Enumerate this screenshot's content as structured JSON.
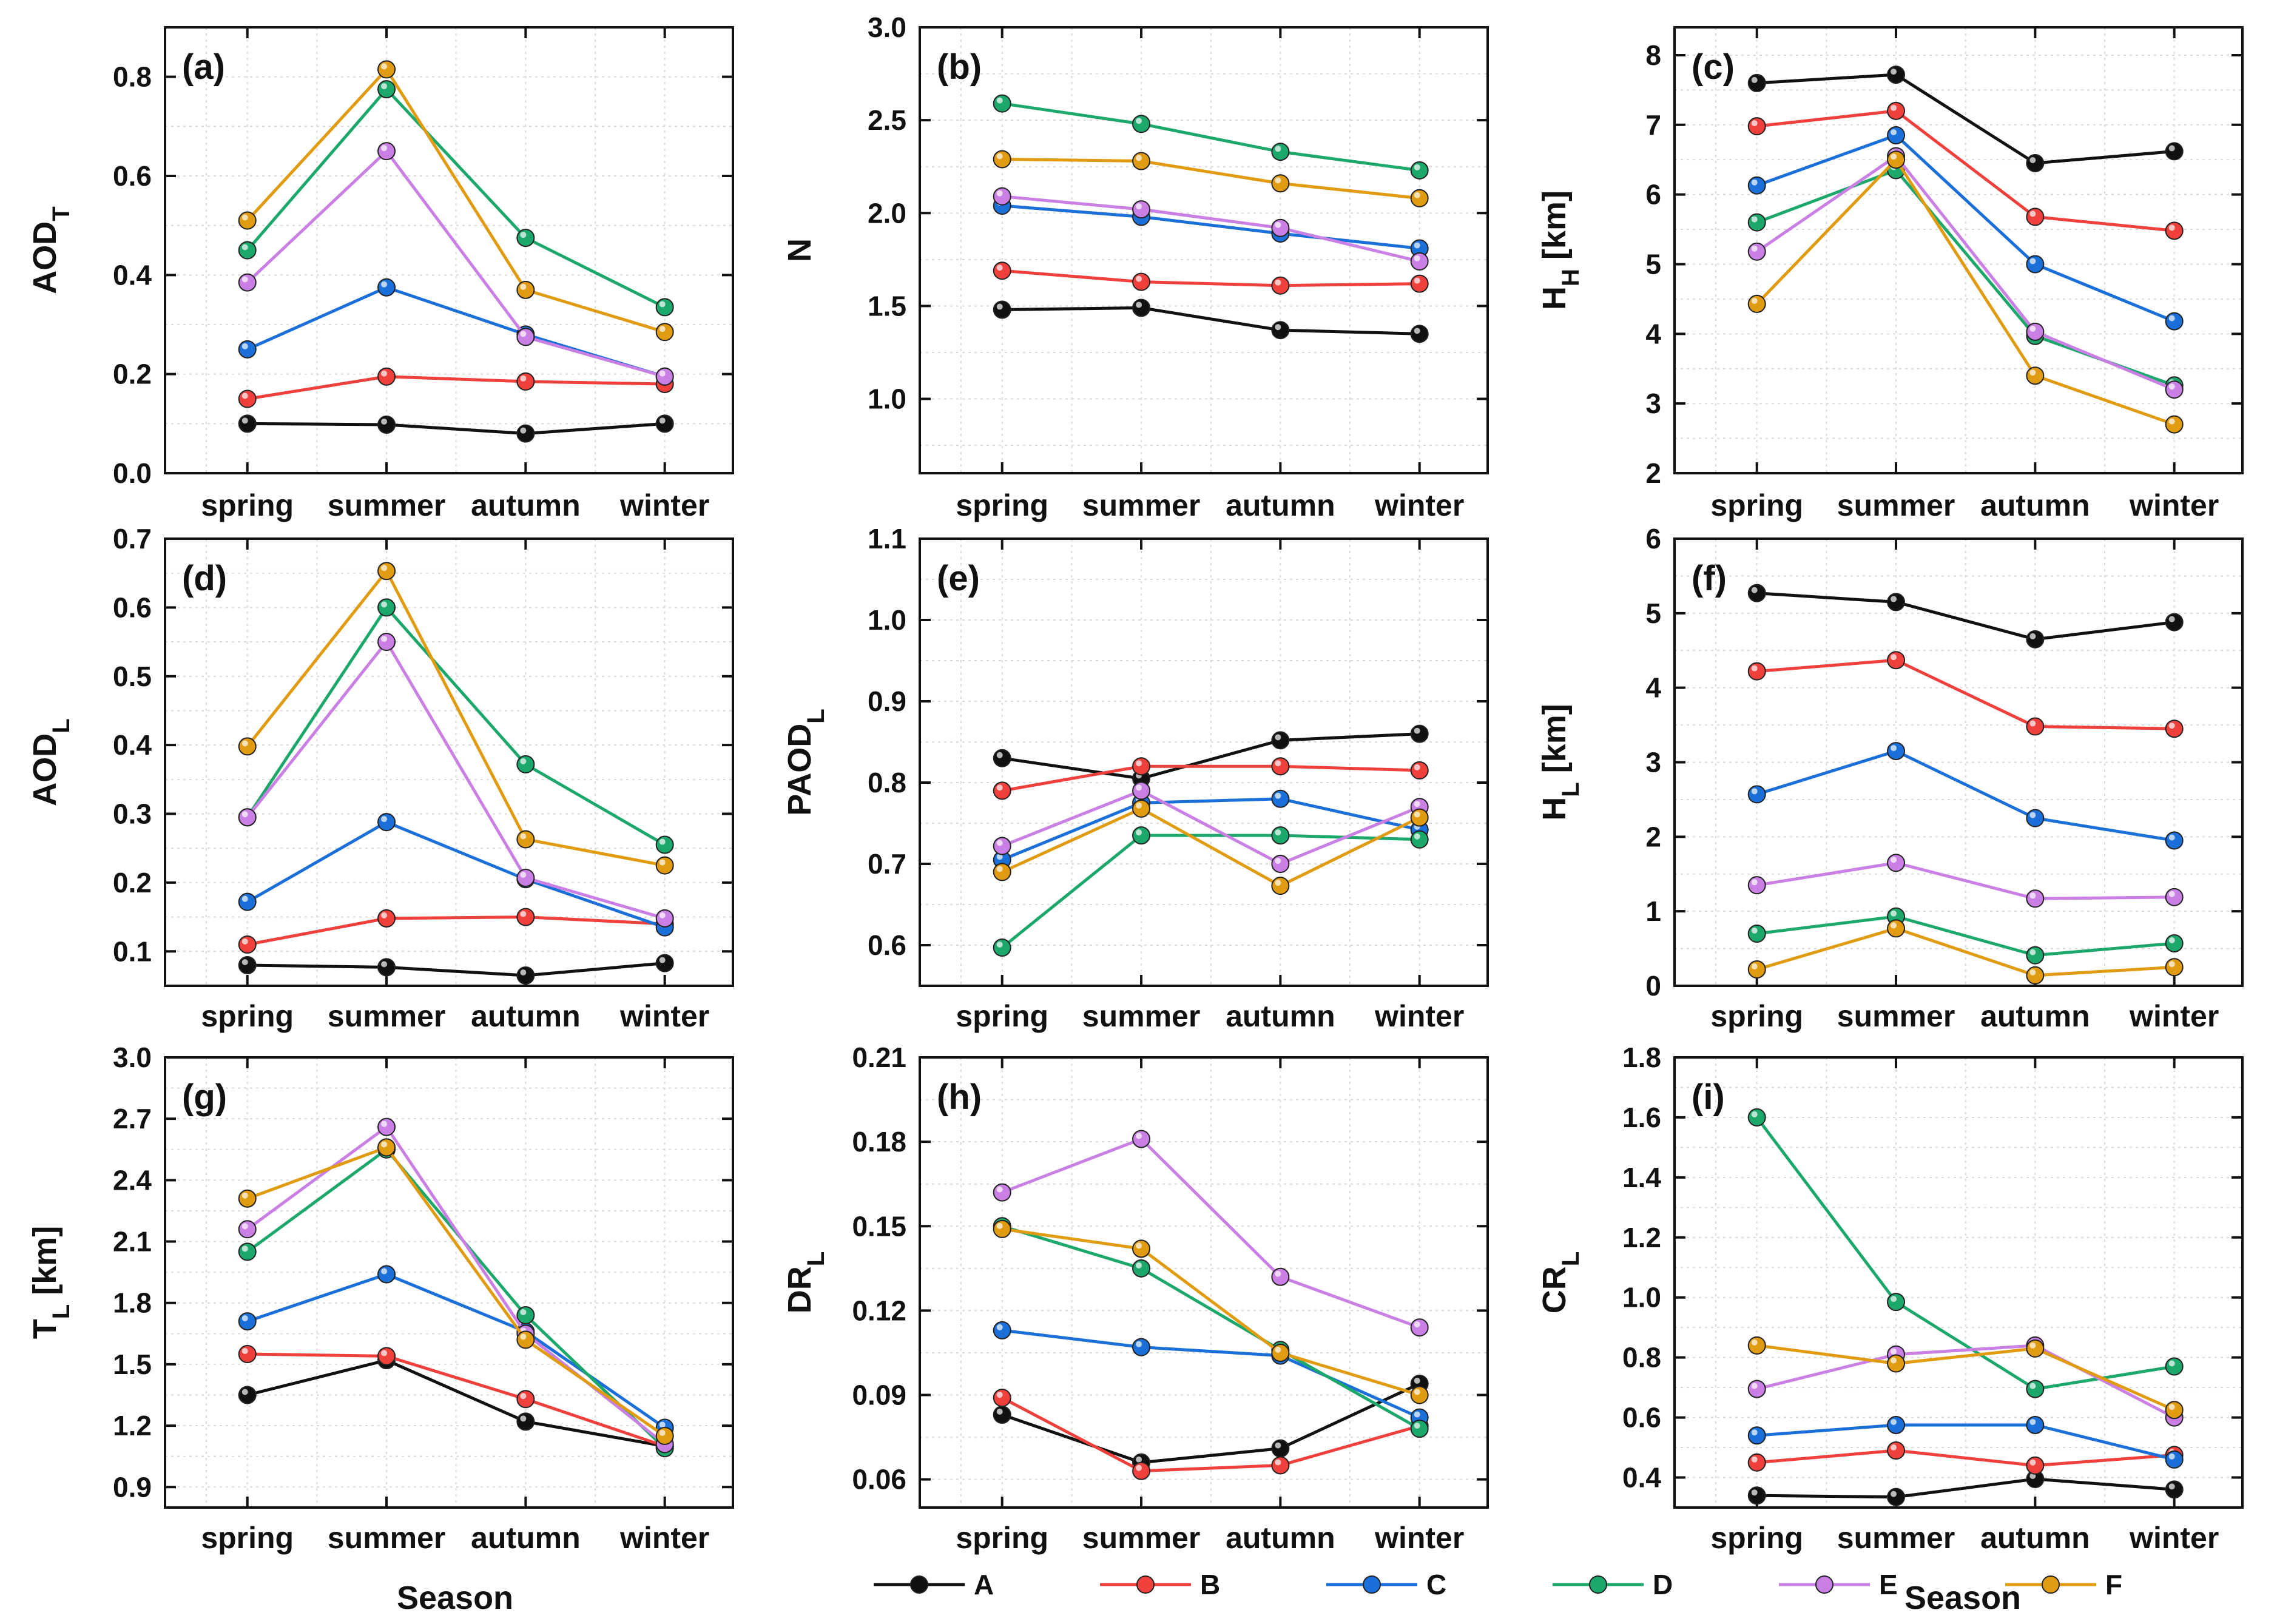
{
  "series_names": [
    "A",
    "B",
    "C",
    "D",
    "E",
    "F"
  ],
  "colors": {
    "A": "#111111",
    "B": "#f0403c",
    "C": "#1a6fd8",
    "D": "#1ba86a",
    "E": "#c97fe3",
    "F": "#e09b10"
  },
  "categories": [
    "spring",
    "summer",
    "autumn",
    "winter"
  ],
  "x_title": "Season",
  "chart_data": [
    {
      "type": "line",
      "tag": "(a)",
      "ylabel": "AOD",
      "ylabel_sub": "T",
      "ylim": [
        0.0,
        0.9
      ],
      "yticks": [
        "0.0",
        "0.2",
        "0.4",
        "0.6",
        "0.8"
      ],
      "series": [
        {
          "name": "A",
          "values": [
            0.1,
            0.098,
            0.08,
            0.1
          ]
        },
        {
          "name": "B",
          "values": [
            0.15,
            0.195,
            0.185,
            0.18
          ]
        },
        {
          "name": "C",
          "values": [
            0.25,
            0.375,
            0.28,
            0.195
          ]
        },
        {
          "name": "D",
          "values": [
            0.45,
            0.775,
            0.475,
            0.335
          ]
        },
        {
          "name": "E",
          "values": [
            0.385,
            0.65,
            0.275,
            0.195
          ]
        },
        {
          "name": "F",
          "values": [
            0.51,
            0.815,
            0.37,
            0.285
          ]
        }
      ]
    },
    {
      "type": "line",
      "tag": "(b)",
      "ylabel": "N",
      "ylabel_sub": "",
      "ylim": [
        0.6,
        3.0
      ],
      "yticks": [
        "1.0",
        "1.5",
        "2.0",
        "2.5",
        "3.0"
      ],
      "series": [
        {
          "name": "A",
          "values": [
            1.48,
            1.49,
            1.37,
            1.35
          ]
        },
        {
          "name": "B",
          "values": [
            1.69,
            1.63,
            1.61,
            1.62
          ]
        },
        {
          "name": "C",
          "values": [
            2.04,
            1.98,
            1.89,
            1.81
          ]
        },
        {
          "name": "D",
          "values": [
            2.59,
            2.48,
            2.33,
            2.23
          ]
        },
        {
          "name": "E",
          "values": [
            2.09,
            2.02,
            1.92,
            1.74
          ]
        },
        {
          "name": "F",
          "values": [
            2.29,
            2.28,
            2.16,
            2.08
          ]
        }
      ]
    },
    {
      "type": "line",
      "tag": "(c)",
      "ylabel": "H",
      "ylabel_sub": "H",
      "ylabel_suffix": " [km]",
      "ylim": [
        2,
        8.4
      ],
      "yticks": [
        "2",
        "3",
        "4",
        "5",
        "6",
        "7",
        "8"
      ],
      "series": [
        {
          "name": "A",
          "values": [
            7.6,
            7.72,
            6.45,
            6.62
          ]
        },
        {
          "name": "B",
          "values": [
            6.98,
            7.2,
            5.68,
            5.48
          ]
        },
        {
          "name": "C",
          "values": [
            6.13,
            6.85,
            5.0,
            4.18
          ]
        },
        {
          "name": "D",
          "values": [
            5.6,
            6.35,
            3.97,
            3.26
          ]
        },
        {
          "name": "E",
          "values": [
            5.18,
            6.55,
            4.03,
            3.2
          ]
        },
        {
          "name": "F",
          "values": [
            4.43,
            6.5,
            3.4,
            2.7
          ]
        }
      ]
    },
    {
      "type": "line",
      "tag": "(d)",
      "ylabel": "AOD",
      "ylabel_sub": "L",
      "ylim": [
        0.05,
        0.7
      ],
      "yticks": [
        "0.1",
        "0.2",
        "0.3",
        "0.4",
        "0.5",
        "0.6",
        "0.7"
      ],
      "series": [
        {
          "name": "A",
          "values": [
            0.08,
            0.077,
            0.065,
            0.083
          ]
        },
        {
          "name": "B",
          "values": [
            0.11,
            0.148,
            0.15,
            0.14
          ]
        },
        {
          "name": "C",
          "values": [
            0.172,
            0.288,
            0.205,
            0.135
          ]
        },
        {
          "name": "D",
          "values": [
            0.295,
            0.6,
            0.372,
            0.255
          ]
        },
        {
          "name": "E",
          "values": [
            0.295,
            0.55,
            0.207,
            0.148
          ]
        },
        {
          "name": "F",
          "values": [
            0.398,
            0.653,
            0.263,
            0.225
          ]
        }
      ]
    },
    {
      "type": "line",
      "tag": "(e)",
      "ylabel": "PAOD",
      "ylabel_sub": "L",
      "ylim": [
        0.55,
        1.1
      ],
      "yticks": [
        "0.6",
        "0.7",
        "0.8",
        "0.9",
        "1.0",
        "1.1"
      ],
      "series": [
        {
          "name": "A",
          "values": [
            0.83,
            0.805,
            0.852,
            0.86
          ]
        },
        {
          "name": "B",
          "values": [
            0.79,
            0.82,
            0.82,
            0.815
          ]
        },
        {
          "name": "C",
          "values": [
            0.705,
            0.775,
            0.78,
            0.742
          ]
        },
        {
          "name": "D",
          "values": [
            0.597,
            0.735,
            0.735,
            0.73
          ]
        },
        {
          "name": "E",
          "values": [
            0.722,
            0.79,
            0.7,
            0.77
          ]
        },
        {
          "name": "F",
          "values": [
            0.69,
            0.768,
            0.673,
            0.757
          ]
        }
      ]
    },
    {
      "type": "line",
      "tag": "(f)",
      "ylabel": "H",
      "ylabel_sub": "L",
      "ylabel_suffix": " [km]",
      "ylim": [
        0,
        6
      ],
      "yticks": [
        "0",
        "1",
        "2",
        "3",
        "4",
        "5",
        "6"
      ],
      "series": [
        {
          "name": "A",
          "values": [
            5.27,
            5.15,
            4.65,
            4.88
          ]
        },
        {
          "name": "B",
          "values": [
            4.22,
            4.37,
            3.48,
            3.45
          ]
        },
        {
          "name": "C",
          "values": [
            2.57,
            3.15,
            2.25,
            1.95
          ]
        },
        {
          "name": "D",
          "values": [
            0.7,
            0.93,
            0.41,
            0.57
          ]
        },
        {
          "name": "E",
          "values": [
            1.35,
            1.65,
            1.17,
            1.19
          ]
        },
        {
          "name": "F",
          "values": [
            0.22,
            0.77,
            0.14,
            0.25
          ]
        }
      ]
    },
    {
      "type": "line",
      "tag": "(g)",
      "ylabel": "T",
      "ylabel_sub": "L",
      "ylabel_suffix": " [km]",
      "ylim": [
        0.8,
        3.0
      ],
      "yticks": [
        "0.9",
        "1.2",
        "1.5",
        "1.8",
        "2.1",
        "2.4",
        "2.7",
        "3.0"
      ],
      "series": [
        {
          "name": "A",
          "values": [
            1.35,
            1.52,
            1.22,
            1.1
          ]
        },
        {
          "name": "B",
          "values": [
            1.55,
            1.54,
            1.33,
            1.1
          ]
        },
        {
          "name": "C",
          "values": [
            1.71,
            1.94,
            1.66,
            1.19
          ]
        },
        {
          "name": "D",
          "values": [
            2.05,
            2.55,
            1.74,
            1.09
          ]
        },
        {
          "name": "E",
          "values": [
            2.16,
            2.66,
            1.65,
            1.11
          ]
        },
        {
          "name": "F",
          "values": [
            2.31,
            2.56,
            1.62,
            1.15
          ]
        }
      ]
    },
    {
      "type": "line",
      "tag": "(h)",
      "ylabel": "DR",
      "ylabel_sub": "L",
      "ylim": [
        0.05,
        0.21
      ],
      "yticks": [
        "0.06",
        "0.09",
        "0.12",
        "0.15",
        "0.18",
        "0.21"
      ],
      "series": [
        {
          "name": "A",
          "values": [
            0.083,
            0.066,
            0.071,
            0.094
          ]
        },
        {
          "name": "B",
          "values": [
            0.089,
            0.063,
            0.065,
            0.079
          ]
        },
        {
          "name": "C",
          "values": [
            0.113,
            0.107,
            0.104,
            0.082
          ]
        },
        {
          "name": "D",
          "values": [
            0.15,
            0.135,
            0.106,
            0.078
          ]
        },
        {
          "name": "E",
          "values": [
            0.162,
            0.181,
            0.132,
            0.114
          ]
        },
        {
          "name": "F",
          "values": [
            0.149,
            0.142,
            0.105,
            0.09
          ]
        }
      ]
    },
    {
      "type": "line",
      "tag": "(i)",
      "ylabel": "CR",
      "ylabel_sub": "L",
      "ylim": [
        0.3,
        1.8
      ],
      "yticks": [
        "0.4",
        "0.6",
        "0.8",
        "1.0",
        "1.2",
        "1.4",
        "1.6",
        "1.8"
      ],
      "series": [
        {
          "name": "A",
          "values": [
            0.34,
            0.335,
            0.395,
            0.36
          ]
        },
        {
          "name": "B",
          "values": [
            0.45,
            0.49,
            0.44,
            0.475
          ]
        },
        {
          "name": "C",
          "values": [
            0.54,
            0.575,
            0.575,
            0.46
          ]
        },
        {
          "name": "D",
          "values": [
            1.6,
            0.985,
            0.695,
            0.77
          ]
        },
        {
          "name": "E",
          "values": [
            0.695,
            0.81,
            0.84,
            0.6
          ]
        },
        {
          "name": "F",
          "values": [
            0.84,
            0.78,
            0.83,
            0.625
          ]
        }
      ]
    }
  ]
}
